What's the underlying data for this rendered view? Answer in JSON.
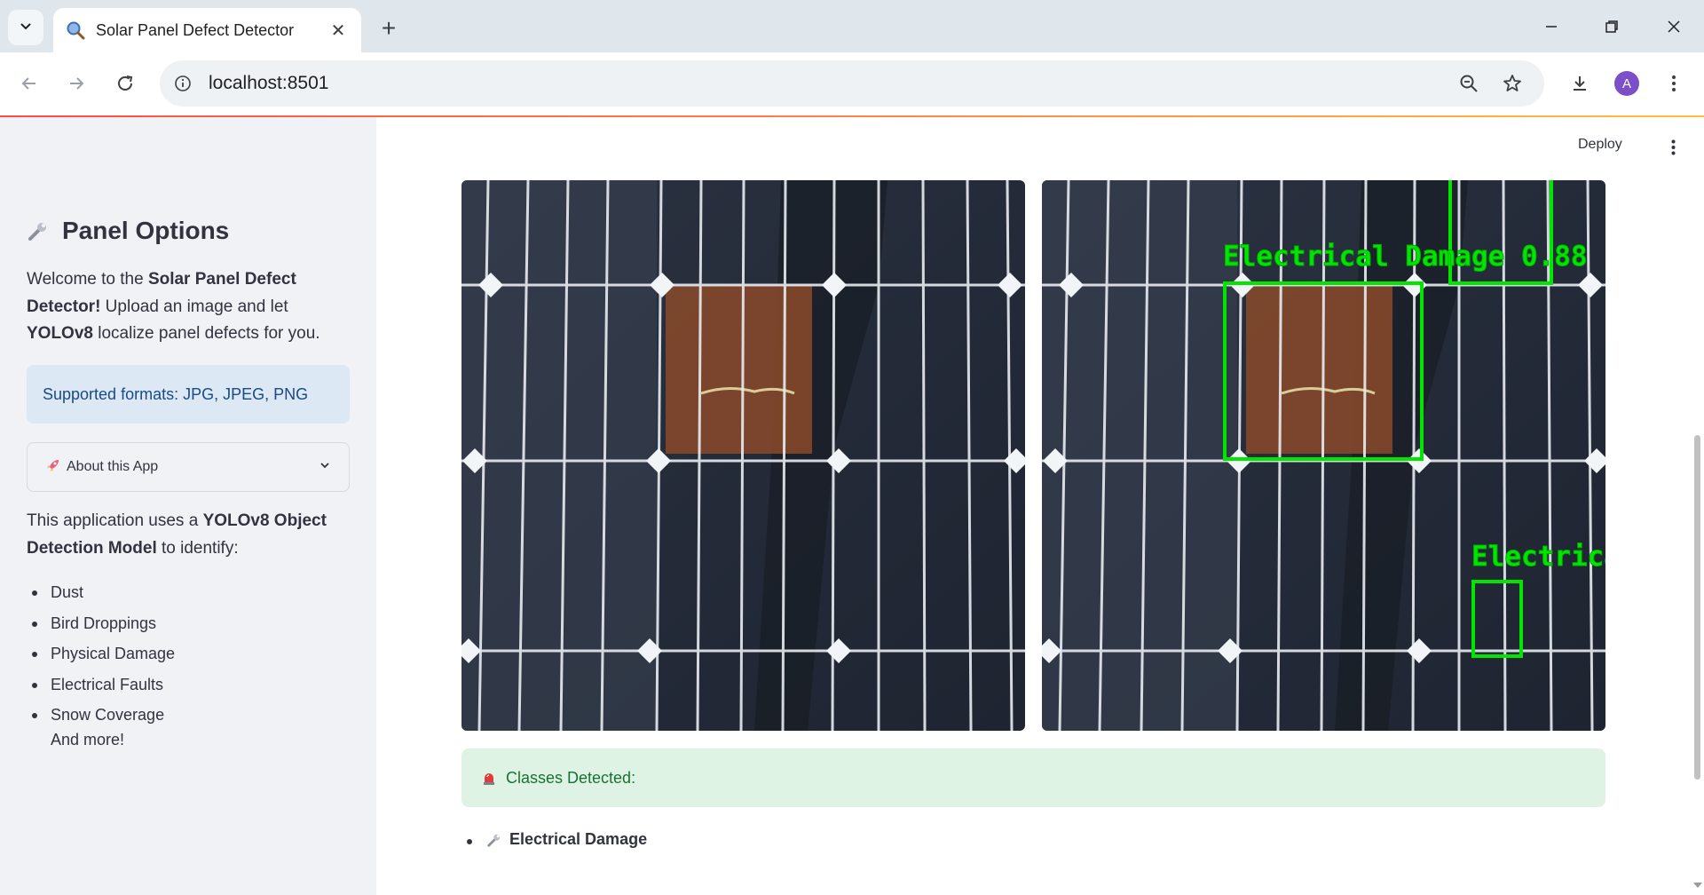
{
  "browser": {
    "tab_title": "Solar Panel Defect Detector",
    "url": "localhost:8501",
    "profile_initial": "A"
  },
  "app": {
    "deploy_label": "Deploy"
  },
  "sidebar": {
    "title": "Panel Options",
    "welcome_pre": "Welcome to the ",
    "welcome_bold": "Solar Panel Defect Detector!",
    "welcome_mid": " Upload an image and let ",
    "welcome_bold2": "YOLOv8",
    "welcome_post": " localize panel defects for you.",
    "info_text": "Supported formats: JPG, JPEG, PNG",
    "expander_label": "About this App",
    "desc_pre": "This application uses a ",
    "desc_bold": "YOLOv8 Object Detection Model",
    "desc_post": " to identify:",
    "classes": [
      "Dust",
      "Bird Droppings",
      "Physical Damage",
      "Electrical Faults",
      "Snow Coverage"
    ],
    "more_text": "And more!"
  },
  "results": {
    "detections": [
      {
        "label": "Electrical Damage 0.88"
      },
      {
        "label": "Electrical"
      }
    ],
    "success_text": "Classes Detected:",
    "detected_classes": [
      "Electrical Damage"
    ]
  },
  "colors": {
    "accent": "#ff4b4b",
    "detection_box": "#00e600",
    "info_bg": "#dde8f5",
    "success_bg": "#dff3e4",
    "sidebar_bg": "#f0f2f6"
  }
}
